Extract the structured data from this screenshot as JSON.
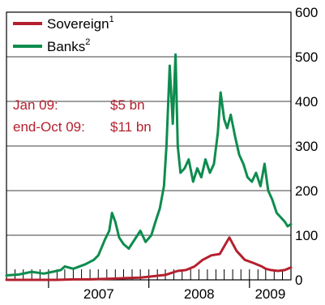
{
  "chart_data": {
    "type": "line",
    "title": "",
    "xlabel": "",
    "ylabel": "",
    "ylim": [
      0,
      600
    ],
    "y_ticks": [
      "0",
      "100",
      "200",
      "300",
      "400",
      "500",
      "600"
    ],
    "y_axis_side": "right",
    "x_range": [
      "2006-08-01",
      "2009-06-01"
    ],
    "x_tick_labels": [
      {
        "label": "2007",
        "date": "2007-01-01"
      },
      {
        "label": "2008",
        "date": "2008-01-01"
      },
      {
        "label": "2009",
        "date": "2009-01-01"
      }
    ],
    "grid": true,
    "legend_position": "top-left",
    "colors": {
      "sovereign": "#b5202e",
      "banks": "#0e8c4e",
      "annotation": "#b5202e"
    },
    "legend": [
      {
        "name": "Sovereign",
        "sup": "1",
        "color": "#b5202e"
      },
      {
        "name": "Banks",
        "sup": "2",
        "color": "#0e8c4e"
      }
    ],
    "annotations": [
      {
        "label": "Jan 09:",
        "value": "$5 bn"
      },
      {
        "label": "end-Oct 09:",
        "value": "$11 bn"
      }
    ],
    "series": [
      {
        "name": "Sovereign",
        "x": [
          "2006-08-01",
          "2006-10-01",
          "2006-12-01",
          "2007-02-01",
          "2007-04-01",
          "2007-06-01",
          "2007-07-15",
          "2007-09-01",
          "2007-10-15",
          "2007-12-01",
          "2008-01-15",
          "2008-03-01",
          "2008-03-20",
          "2008-04-15",
          "2008-05-15",
          "2008-06-15",
          "2008-07-15",
          "2008-08-15",
          "2008-09-15",
          "2008-10-01",
          "2008-10-20",
          "2008-11-15",
          "2008-12-15",
          "2009-01-15",
          "2009-02-15",
          "2009-03-01",
          "2009-03-20",
          "2009-04-15",
          "2009-05-10",
          "2009-06-01"
        ],
        "y": [
          0,
          0,
          0,
          0,
          1,
          1,
          2,
          3,
          4,
          5,
          8,
          11,
          15,
          20,
          22,
          30,
          45,
          55,
          58,
          75,
          95,
          65,
          45,
          38,
          30,
          25,
          22,
          20,
          22,
          28
        ]
      },
      {
        "name": "Banks",
        "x": [
          "2006-08-01",
          "2006-09-15",
          "2006-11-01",
          "2006-12-15",
          "2007-01-15",
          "2007-02-15",
          "2007-03-01",
          "2007-04-01",
          "2007-05-15",
          "2007-06-15",
          "2007-07-01",
          "2007-07-25",
          "2007-08-10",
          "2007-08-20",
          "2007-09-01",
          "2007-09-15",
          "2007-10-01",
          "2007-10-20",
          "2007-11-10",
          "2007-12-01",
          "2007-12-20",
          "2008-01-10",
          "2008-01-25",
          "2008-02-10",
          "2008-02-25",
          "2008-03-05",
          "2008-03-17",
          "2008-03-28",
          "2008-04-07",
          "2008-04-15",
          "2008-04-25",
          "2008-05-10",
          "2008-05-25",
          "2008-06-10",
          "2008-06-25",
          "2008-07-10",
          "2008-07-25",
          "2008-08-10",
          "2008-08-25",
          "2008-09-08",
          "2008-09-18",
          "2008-10-01",
          "2008-10-12",
          "2008-10-25",
          "2008-11-10",
          "2008-11-25",
          "2008-12-10",
          "2008-12-25",
          "2009-01-10",
          "2009-01-25",
          "2009-02-10",
          "2009-02-25",
          "2009-03-10",
          "2009-03-25",
          "2009-04-10",
          "2009-04-25",
          "2009-05-10",
          "2009-05-20",
          "2009-06-01"
        ],
        "y": [
          10,
          12,
          18,
          14,
          18,
          22,
          30,
          25,
          35,
          45,
          55,
          90,
          110,
          150,
          130,
          95,
          80,
          70,
          90,
          110,
          85,
          100,
          130,
          160,
          210,
          300,
          480,
          350,
          505,
          300,
          240,
          250,
          270,
          220,
          250,
          230,
          270,
          240,
          260,
          330,
          420,
          360,
          340,
          370,
          320,
          280,
          260,
          230,
          220,
          240,
          210,
          260,
          200,
          180,
          150,
          140,
          130,
          120,
          125
        ]
      }
    ]
  }
}
